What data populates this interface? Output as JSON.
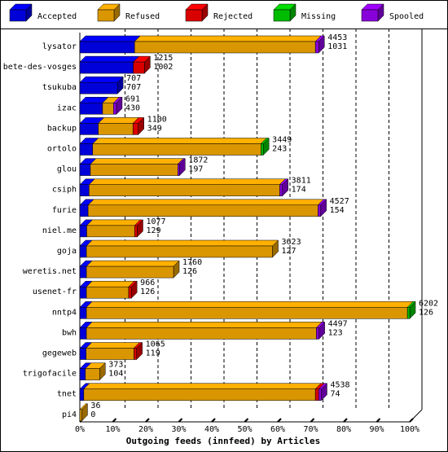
{
  "chart_data": {
    "type": "bar",
    "orientation": "horizontal",
    "xlabel": "Outgoing feeds (innfeed) by Articles",
    "categories": [
      "lysator",
      "bete-des-vosges",
      "tsukuba",
      "izac",
      "backup",
      "ortolo",
      "glou",
      "csiph",
      "furie",
      "niel.me",
      "goja",
      "weretis.net",
      "usenet-fr",
      "nntp4",
      "bwh",
      "gegeweb",
      "trigofacile",
      "tnet",
      "pi4"
    ],
    "offered": [
      4453,
      1215,
      707,
      691,
      1100,
      3449,
      1872,
      3811,
      4527,
      1077,
      3623,
      1760,
      966,
      6202,
      4497,
      1065,
      373,
      4538,
      36
    ],
    "accepted": [
      1031,
      1002,
      707,
      430,
      349,
      243,
      197,
      174,
      154,
      129,
      127,
      126,
      126,
      126,
      123,
      119,
      104,
      74,
      0
    ],
    "series": [
      {
        "name": "Accepted",
        "color": "#0000ff",
        "values": [
          16.6,
          16.2,
          11.4,
          6.9,
          5.6,
          3.9,
          3.2,
          2.8,
          2.5,
          2.1,
          2.0,
          2.0,
          2.0,
          2.0,
          2.0,
          1.9,
          1.7,
          1.2,
          0
        ]
      },
      {
        "name": "Refused",
        "color": "#ffb000",
        "values": [
          54.8,
          0,
          0,
          3.3,
          10.5,
          51,
          26.5,
          57.8,
          69.7,
          14.5,
          56.4,
          26.4,
          12.8,
          97.3,
          69.7,
          14.5,
          4.3,
          70.2,
          0.6
        ]
      },
      {
        "name": "Rejected",
        "color": "#ff0000",
        "values": [
          0,
          3.4,
          0,
          0,
          1.6,
          0,
          0,
          0,
          0,
          0.8,
          0,
          0,
          0.8,
          0,
          0,
          0.8,
          0,
          1.0,
          0
        ]
      },
      {
        "name": "Missing",
        "color": "#00dd00",
        "values": [
          0,
          0,
          0,
          0,
          0,
          0.7,
          0,
          0,
          0,
          0,
          0,
          0,
          0,
          0.7,
          0,
          0,
          0,
          0,
          0
        ]
      },
      {
        "name": "Spooled",
        "color": "#a000ff",
        "values": [
          1,
          0,
          0,
          0.9,
          0,
          0,
          0.5,
          0.8,
          0.8,
          0,
          0,
          0,
          0,
          0,
          0.8,
          0,
          0,
          0.8,
          0
        ]
      }
    ],
    "xlim": [
      0,
      100
    ],
    "xticks": [
      {
        "value": 0,
        "label": "0%"
      },
      {
        "value": 10,
        "label": "10%"
      },
      {
        "value": 20,
        "label": "20%"
      },
      {
        "value": 30,
        "label": "30%"
      },
      {
        "value": 40,
        "label": "40%"
      },
      {
        "value": 50,
        "label": "50%"
      },
      {
        "value": 60,
        "label": "60%"
      },
      {
        "value": 70,
        "label": "70%"
      },
      {
        "value": 80,
        "label": "80%"
      },
      {
        "value": 90,
        "label": "90%"
      },
      {
        "value": 100,
        "label": "100%"
      }
    ],
    "grid": true
  }
}
